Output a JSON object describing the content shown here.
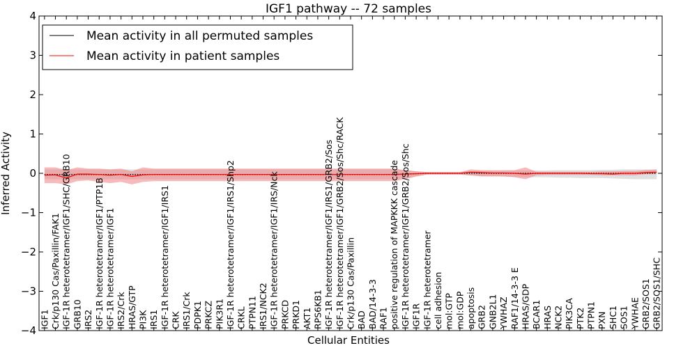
{
  "chart_data": {
    "type": "line",
    "title": "IGF1 pathway -- 72 samples",
    "xlabel": "Cellular Entities",
    "ylabel": "Inferred Activity",
    "ylim": [
      -4,
      4
    ],
    "yticks": [
      -4,
      -3,
      -2,
      -1,
      0,
      1,
      2,
      3,
      4
    ],
    "ytick_labels": [
      "−4",
      "−3",
      "−2",
      "−1",
      "0",
      "1",
      "2",
      "3",
      "4"
    ],
    "grid": false,
    "legend_position": "top-left",
    "categories": [
      "IGF1",
      "Crk/p130 Cas/Paxillin/FAK1",
      "IGF-1R heterotetramer/IGF1/SHC/GRB10",
      "GRB10",
      "IRS2",
      "IGF-1R heterotetramer/IGF1/PTP1B",
      "IGF-1R heterotetramer/IGF1",
      "IRS2/Crk",
      "HRAS/GTP",
      "PI3K",
      "IRS1",
      "IGF-1R heterotetramer/IGF1/IRS1",
      "CRK",
      "IRS1/Crk",
      "PDPK1",
      "PRKCZ",
      "PIK3R1",
      "IGF-1R heterotetramer/IGF1/IRS1/Shp2",
      "CRKL",
      "PTPN11",
      "IRS1/NCK2",
      "IGF-1R heterotetramer/IGF1/IRS/Nck",
      "PRKCD",
      "PRKD1",
      "AKT1",
      "RPS6KB1",
      "IGF-1R heterotetramer/IGF1/IRS1/GRB2/Sos",
      "IGF-1R heterotetramer/IGF1/GRB2/Sos/Shc/RACK",
      "Crk/p130 Cas/Paxillin",
      "BAD",
      "BAD/14-3-3",
      "RAF1",
      "positive regulation of MAPKKK cascade",
      "IGF-1R heterotetramer/IGF1/GRB2/Sos/Shc",
      "IGF1R",
      "IGF-1R heterotetramer",
      "cell adhesion",
      "mol:GTP",
      "mol:GDP",
      "apoptosis",
      "GRB2",
      "GNB2L1",
      "YWHAZ",
      "RAF1/14-3-3 E",
      "HRAS/GDP",
      "BCAR1",
      "HRAS",
      "NCK2",
      "PIK3CA",
      "PTK2",
      "PTPN1",
      "PXN",
      "SHC1",
      "SOS1",
      "YWHAE",
      "GRB2/SOS1",
      "GRB2/SOS1/SHC"
    ],
    "series": [
      {
        "name": "Mean activity in all permuted samples",
        "color": "#000000",
        "style": "dotted",
        "values": [
          -0.03,
          -0.03,
          -0.03,
          -0.03,
          -0.03,
          -0.03,
          -0.03,
          -0.03,
          -0.03,
          -0.03,
          -0.03,
          -0.03,
          -0.03,
          -0.03,
          -0.03,
          -0.03,
          -0.03,
          -0.03,
          -0.03,
          -0.03,
          -0.03,
          -0.03,
          -0.03,
          -0.03,
          -0.03,
          -0.03,
          -0.03,
          -0.03,
          -0.03,
          -0.03,
          -0.03,
          -0.03,
          -0.03,
          -0.02,
          -0.01,
          0.0,
          0.0,
          0.0,
          0.0,
          0.0,
          0.0,
          0.0,
          0.0,
          0.0,
          0.0,
          0.0,
          0.0,
          0.0,
          0.0,
          0.0,
          0.0,
          0.0,
          0.0,
          0.0,
          0.0,
          0.0,
          0.0
        ],
        "band_lower": [
          -0.15,
          -0.15,
          -0.15,
          -0.15,
          -0.15,
          -0.15,
          -0.15,
          -0.15,
          -0.15,
          -0.15,
          -0.15,
          -0.15,
          -0.15,
          -0.15,
          -0.15,
          -0.15,
          -0.15,
          -0.15,
          -0.15,
          -0.15,
          -0.15,
          -0.15,
          -0.15,
          -0.15,
          -0.15,
          -0.15,
          -0.15,
          -0.15,
          -0.15,
          -0.15,
          -0.15,
          -0.15,
          -0.15,
          -0.13,
          -0.08,
          -0.03,
          -0.03,
          -0.03,
          -0.03,
          -0.06,
          -0.07,
          -0.07,
          -0.08,
          -0.09,
          -0.1,
          -0.1,
          -0.1,
          -0.11,
          -0.11,
          -0.12,
          -0.12,
          -0.12,
          -0.13,
          -0.14,
          -0.15,
          -0.15,
          -0.15
        ],
        "band_upper": [
          0.1,
          0.1,
          0.1,
          0.1,
          0.1,
          0.1,
          0.1,
          0.1,
          0.1,
          0.1,
          0.1,
          0.1,
          0.1,
          0.1,
          0.1,
          0.1,
          0.1,
          0.1,
          0.1,
          0.1,
          0.1,
          0.1,
          0.1,
          0.1,
          0.1,
          0.1,
          0.1,
          0.1,
          0.1,
          0.1,
          0.1,
          0.1,
          0.1,
          0.08,
          0.05,
          0.03,
          0.03,
          0.03,
          0.03,
          0.05,
          0.06,
          0.06,
          0.06,
          0.07,
          0.07,
          0.07,
          0.07,
          0.08,
          0.08,
          0.08,
          0.08,
          0.09,
          0.09,
          0.1,
          0.1,
          0.1,
          0.1
        ],
        "band_color": "#cccccc"
      },
      {
        "name": "Mean activity in patient samples",
        "color": "#ff0000",
        "style": "solid",
        "values": [
          -0.05,
          -0.04,
          -0.12,
          -0.02,
          -0.02,
          -0.03,
          -0.05,
          -0.03,
          -0.08,
          -0.04,
          -0.03,
          -0.03,
          -0.03,
          -0.03,
          -0.03,
          -0.03,
          -0.03,
          -0.03,
          -0.03,
          -0.03,
          -0.03,
          -0.03,
          -0.03,
          -0.03,
          -0.03,
          -0.03,
          -0.03,
          -0.03,
          -0.03,
          -0.03,
          -0.03,
          -0.03,
          -0.03,
          -0.02,
          -0.01,
          0.0,
          0.0,
          0.0,
          0.0,
          0.03,
          0.02,
          0.01,
          0.01,
          0.0,
          -0.02,
          0.0,
          0.0,
          0.0,
          0.0,
          0.0,
          -0.01,
          -0.01,
          -0.02,
          0.0,
          0.0,
          0.02,
          0.03
        ],
        "band_lower": [
          -0.25,
          -0.25,
          -0.28,
          -0.2,
          -0.18,
          -0.22,
          -0.25,
          -0.22,
          -0.28,
          -0.22,
          -0.2,
          -0.2,
          -0.2,
          -0.2,
          -0.2,
          -0.2,
          -0.2,
          -0.2,
          -0.2,
          -0.2,
          -0.2,
          -0.2,
          -0.2,
          -0.2,
          -0.2,
          -0.2,
          -0.2,
          -0.2,
          -0.2,
          -0.2,
          -0.2,
          -0.2,
          -0.2,
          -0.15,
          -0.08,
          -0.03,
          -0.03,
          -0.03,
          -0.03,
          -0.05,
          -0.08,
          -0.08,
          -0.08,
          -0.1,
          -0.15,
          -0.05,
          -0.04,
          -0.04,
          -0.04,
          -0.04,
          -0.04,
          -0.05,
          -0.05,
          -0.05,
          -0.05,
          -0.02,
          -0.02
        ],
        "band_upper": [
          0.15,
          0.15,
          0.08,
          0.15,
          0.12,
          0.12,
          0.1,
          0.12,
          0.05,
          0.15,
          0.12,
          0.12,
          0.12,
          0.12,
          0.12,
          0.12,
          0.12,
          0.12,
          0.12,
          0.12,
          0.12,
          0.12,
          0.12,
          0.12,
          0.12,
          0.12,
          0.12,
          0.12,
          0.12,
          0.12,
          0.12,
          0.12,
          0.12,
          0.08,
          0.05,
          0.03,
          0.03,
          0.03,
          0.03,
          0.1,
          0.08,
          0.08,
          0.08,
          0.08,
          0.15,
          0.04,
          0.04,
          0.04,
          0.04,
          0.04,
          0.04,
          0.05,
          0.05,
          0.06,
          0.06,
          0.08,
          0.1
        ],
        "band_color": "#f08080"
      }
    ]
  }
}
